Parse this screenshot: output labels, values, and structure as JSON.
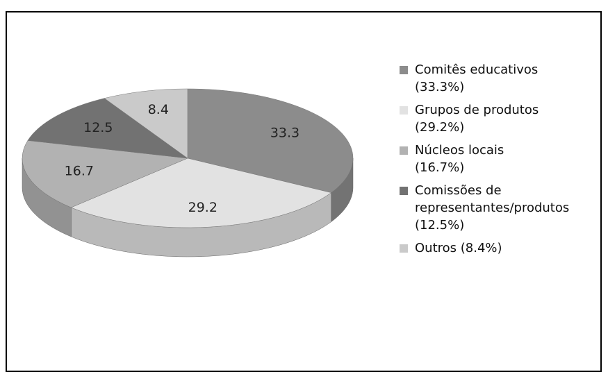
{
  "chart_data": {
    "type": "pie",
    "categories": [
      "Comitês educativos\n(33.3%)",
      "Grupos de produtos\n(29.2%)",
      "Núcleos locais\n(16.7%)",
      "Comissões de\nrepresentantes/produtos\n(12.5%)",
      "Outros (8.4%)"
    ],
    "values": [
      33.3,
      29.2,
      16.7,
      12.5,
      8.4
    ],
    "colors": [
      "#8c8c8c",
      "#e2e2e2",
      "#b2b2b2",
      "#727272",
      "#cacaca"
    ],
    "legend": "right"
  }
}
